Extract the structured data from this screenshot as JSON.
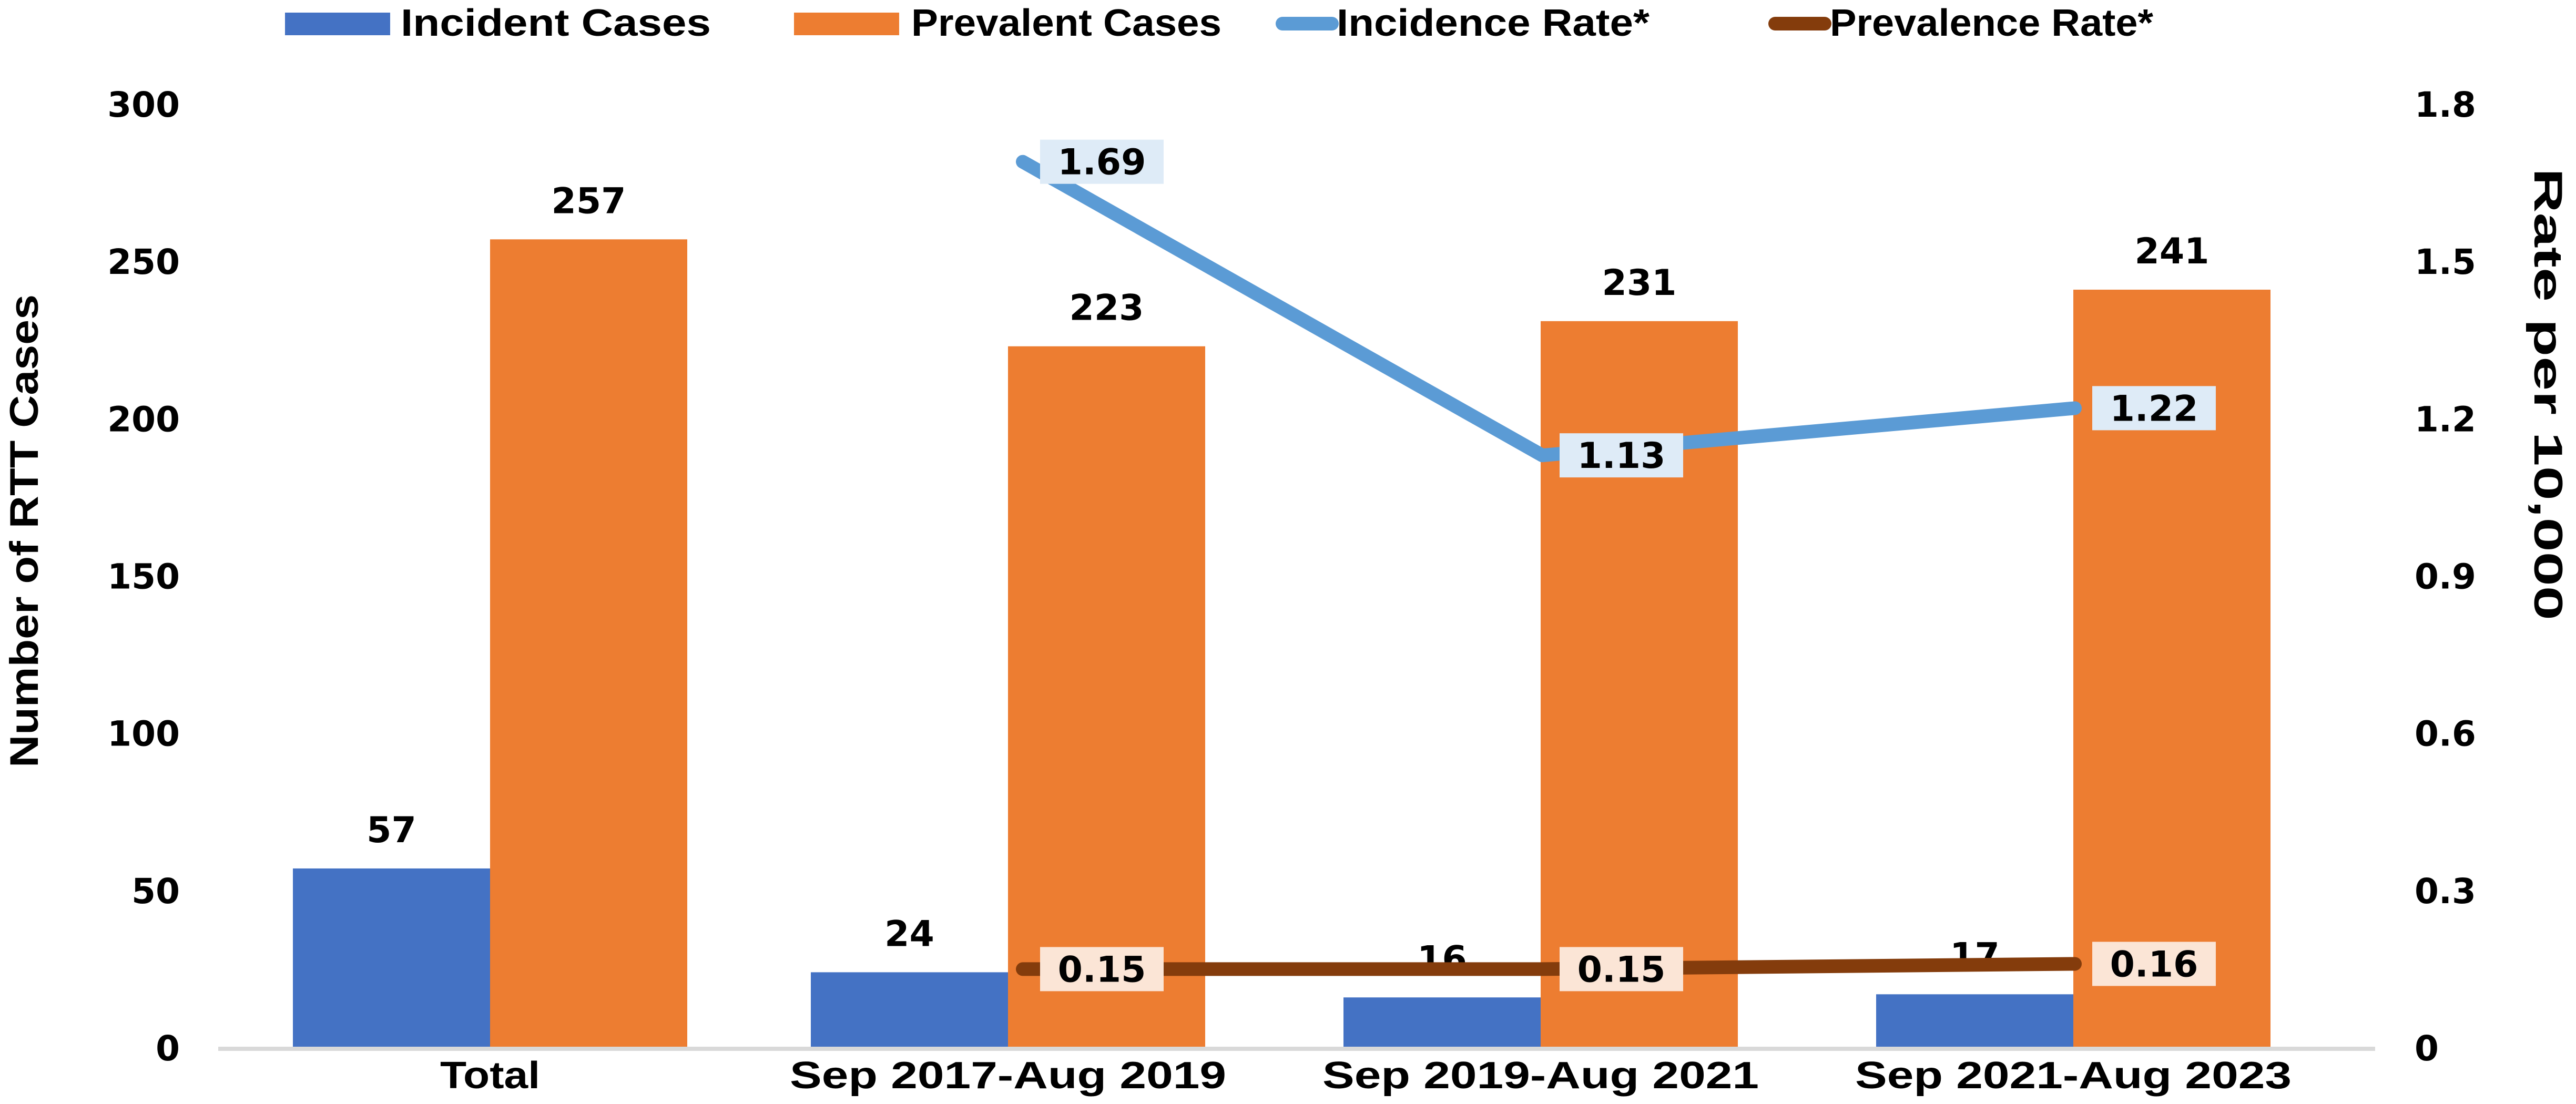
{
  "chart_data": {
    "type": "bar",
    "title": "",
    "categories": [
      "Total",
      "Sep 2017-Aug 2019",
      "Sep 2019-Aug 2021",
      "Sep 2021-Aug 2023"
    ],
    "series": [
      {
        "name": "Incident Cases",
        "type": "bar",
        "axis": "left",
        "color": "#4472C4",
        "values": [
          57,
          24,
          16,
          17
        ]
      },
      {
        "name": "Prevalent Cases",
        "type": "bar",
        "axis": "left",
        "color": "#ED7D31",
        "values": [
          257,
          223,
          231,
          241
        ]
      },
      {
        "name": "Incidence Rate*",
        "type": "line",
        "axis": "right",
        "color": "#5B9BD5",
        "label_bg": "#DEEBF7",
        "values": [
          null,
          1.69,
          1.13,
          1.22
        ]
      },
      {
        "name": "Prevalence Rate*",
        "type": "line",
        "axis": "right",
        "color": "#843C0C",
        "label_bg": "#FBE5D6",
        "values": [
          null,
          0.15,
          0.15,
          0.16
        ]
      }
    ],
    "xlabel": "",
    "ylabel": "Number of RTT Cases",
    "ylabel_right": "Rate per 10,000",
    "ylim": [
      0,
      300
    ],
    "ylim_right": [
      0,
      1.8
    ],
    "yticks": [
      "0",
      "50",
      "100",
      "150",
      "200",
      "250",
      "300"
    ],
    "yticks_right": [
      "0",
      "0.3",
      "0.6",
      "0.9",
      "1.2",
      "1.5",
      "1.8"
    ],
    "grid": false,
    "legend_position": "top"
  }
}
